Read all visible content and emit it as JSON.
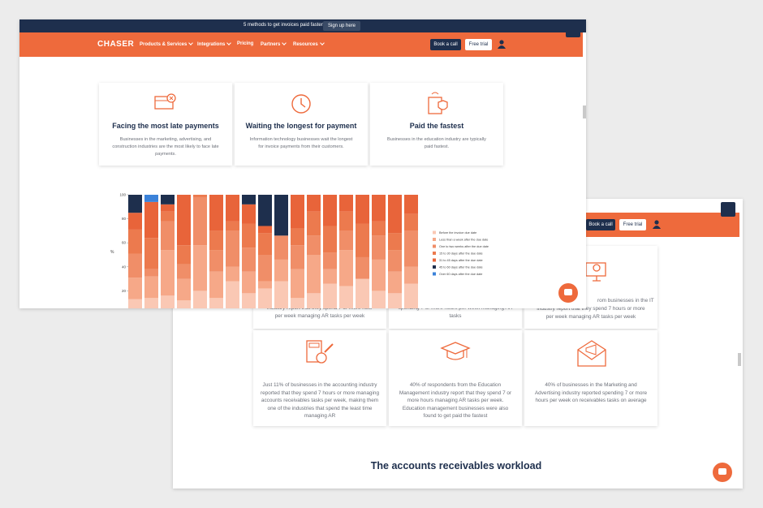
{
  "front": {
    "banner": {
      "text": "5 methods to get invoices paid faster",
      "button": "Sign up here"
    },
    "nav": {
      "logo": "CHASER",
      "links": [
        "Products & Services",
        "Integrations",
        "Pricing",
        "Partners",
        "Resources"
      ],
      "book": "Book a call",
      "trial": "Free trial"
    },
    "cards": [
      {
        "title": "Facing the most late payments",
        "text": "Businesses in the marketing, advertising, and construction industries are the most likely to face late payments."
      },
      {
        "title": "Waiting the longest for payment",
        "text": "Information technology businesses wait the longest for invoice payments from their customers."
      },
      {
        "title": "Paid the fastest",
        "text": "Businesses in the education industry are typically paid fastest."
      }
    ],
    "chart_data": {
      "type": "bar",
      "stacked": true,
      "ylabel": "%",
      "categories": [
        null,
        null,
        null,
        null,
        null,
        null,
        null,
        null,
        null,
        null,
        null,
        null,
        null,
        null,
        null,
        null,
        null,
        null
      ],
      "ylim": [
        0,
        100
      ],
      "yticks": [
        20,
        40,
        60,
        80,
        100
      ],
      "series": [
        {
          "name": "Before the invoice due date",
          "color": "#fac8b4",
          "values": [
            13,
            14,
            16,
            12,
            20,
            14,
            28,
            18,
            22,
            28,
            14,
            18,
            26,
            24,
            30,
            20,
            18,
            26
          ]
        },
        {
          "name": "Less than a week after the due date",
          "color": "#f6a888",
          "values": [
            18,
            18,
            38,
            18,
            38,
            22,
            12,
            18,
            6,
            18,
            24,
            32,
            12,
            30,
            0,
            26,
            18,
            14
          ]
        },
        {
          "name": "One to two weeks after the due date",
          "color": "#f08e68",
          "values": [
            20,
            6,
            24,
            12,
            40,
            18,
            30,
            20,
            22,
            20,
            20,
            16,
            14,
            16,
            18,
            20,
            18,
            30
          ]
        },
        {
          "name": "15 to 30 days after the due date",
          "color": "#ec7a4e",
          "values": [
            20,
            26,
            8,
            16,
            2,
            16,
            8,
            20,
            18,
            0,
            14,
            20,
            22,
            16,
            28,
            12,
            14,
            14
          ]
        },
        {
          "name": "31 to 45 days after the due date",
          "color": "#e8643a",
          "values": [
            14,
            30,
            6,
            42,
            0,
            30,
            22,
            16,
            6,
            0,
            28,
            14,
            26,
            14,
            24,
            22,
            32,
            16
          ]
        },
        {
          "name": "45 to 60 days after the due date",
          "color": "#1e2f4d",
          "values": [
            15,
            0,
            8,
            0,
            0,
            0,
            0,
            8,
            26,
            34,
            0,
            0,
            0,
            0,
            0,
            0,
            0,
            0
          ]
        },
        {
          "name": "Over 60 days after the due date",
          "color": "#3b82d9",
          "values": [
            0,
            6,
            0,
            0,
            0,
            0,
            0,
            0,
            0,
            0,
            0,
            0,
            0,
            0,
            0,
            0,
            0,
            0
          ]
        }
      ]
    }
  },
  "back": {
    "nav": {
      "book": "Book a call",
      "trial": "Free trial"
    },
    "row1": [
      {
        "lines": [
          "industry report that they spend 7 or more hour",
          "per week managing AR tasks per week"
        ]
      },
      {
        "lines": [
          "spending 7 or more hours per week managing AR",
          "tasks"
        ]
      },
      {
        "lines": [
          "rom businesses in the IT",
          "industry report that they spend 7 hours or more",
          "per week managing AR tasks per week"
        ]
      }
    ],
    "row2": [
      {
        "text": "Just 11% of businesses in the accounting industry reported that they spend 7 hours or more managing accounts receivables tasks per week, making them one of the industries that spend the least time managing AR"
      },
      {
        "text": "40% of respondents from the Education Management industry report that they spend 7 or more hours managing AR tasks per week. Education management businesses were also found to get paid the fastest"
      },
      {
        "text": "40% of businesses in the Marketing and Advertising industry reported spending 7 or more hours per week on receivables tasks on average"
      }
    ],
    "heading": "The accounts receivables workload"
  }
}
